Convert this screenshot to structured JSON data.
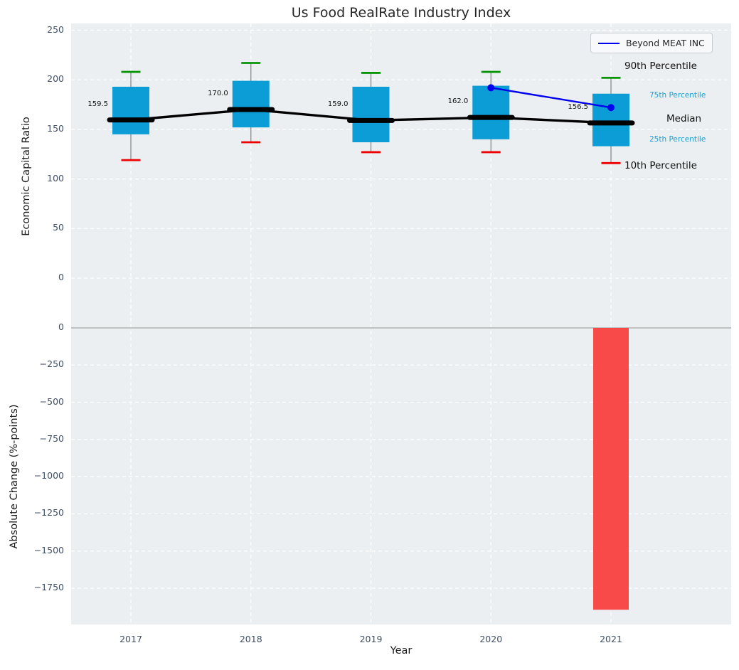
{
  "title": "Us Food RealRate Industry Index",
  "colors": {
    "plot_background": "#eceff1",
    "grid": "#ffffff",
    "box_fill": "#0d9dd6",
    "median_line": "#000000",
    "whisker": "#8a8a8a",
    "cap_high": "#089508",
    "cap_low": "#ee0000",
    "company_line": "#0000ee",
    "bar_negative": "#fa3d3d",
    "zero_line": "#b0b0b0",
    "tick_label": "#3f4e63",
    "percentile_accent": "#189fd3"
  },
  "legend": {
    "entry": "Beyond MEAT INC"
  },
  "percentile_labels": {
    "p90": "90th Percentile",
    "p75": "75th Percentile",
    "median": "Median",
    "p25": "25th Percentile",
    "p10": "10th Percentile"
  },
  "chart_data": [
    {
      "type": "box",
      "title": "Us Food RealRate Industry Index",
      "xlabel": "Year",
      "ylabel": "Economic Capital Ratio",
      "ylim": [
        0,
        250
      ],
      "yticks": [
        0,
        50,
        100,
        150,
        200,
        250
      ],
      "grid": true,
      "categories": [
        "2017",
        "2018",
        "2019",
        "2020",
        "2021"
      ],
      "boxes": [
        {
          "year": "2017",
          "p10": 119,
          "p25": 145,
          "median": 159.5,
          "p75": 193,
          "p90": 208
        },
        {
          "year": "2018",
          "p10": 137,
          "p25": 152,
          "median": 170.0,
          "p75": 199,
          "p90": 217
        },
        {
          "year": "2019",
          "p10": 127,
          "p25": 137,
          "median": 159.0,
          "p75": 193,
          "p90": 207
        },
        {
          "year": "2020",
          "p10": 127,
          "p25": 140,
          "median": 162.0,
          "p75": 194,
          "p90": 208
        },
        {
          "year": "2021",
          "p10": 116,
          "p25": 133,
          "median": 156.5,
          "p75": 186,
          "p90": 202
        }
      ],
      "median_annotations": [
        "159.5",
        "170.0",
        "159.0",
        "162.0",
        "156.5"
      ],
      "series": [
        {
          "name": "Beyond MEAT INC",
          "x": [
            "2020",
            "2021"
          ],
          "values": [
            192,
            172
          ]
        }
      ],
      "legend_position": "upper right"
    },
    {
      "type": "bar",
      "xlabel": "Year",
      "ylabel": "Absolute Change (%-points)",
      "yticks": [
        0,
        -250,
        -500,
        -750,
        -1000,
        -1250,
        -1500,
        -1750
      ],
      "ylim": [
        -1950,
        0
      ],
      "grid": true,
      "categories": [
        "2017",
        "2018",
        "2019",
        "2020",
        "2021"
      ],
      "values": [
        null,
        null,
        null,
        null,
        -1895
      ]
    }
  ]
}
